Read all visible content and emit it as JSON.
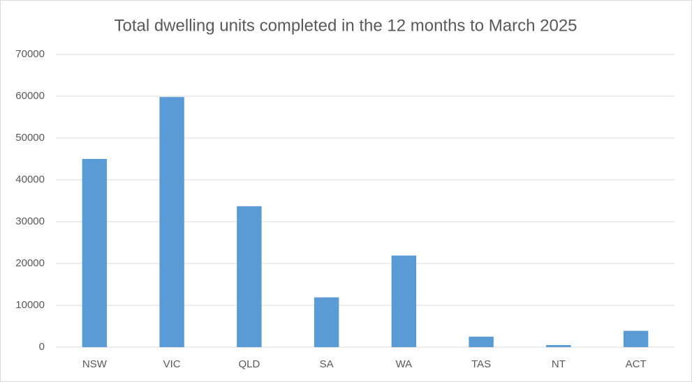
{
  "chart_data": {
    "type": "bar",
    "title": "Total dwelling units completed in the 12 months to March 2025",
    "categories": [
      "NSW",
      "VIC",
      "QLD",
      "SA",
      "WA",
      "TAS",
      "NT",
      "ACT"
    ],
    "values": [
      45000,
      59800,
      33700,
      11900,
      21900,
      2500,
      500,
      3900
    ],
    "color": "#5b9bd5",
    "ylim": [
      0,
      70000
    ],
    "yticks": [
      0,
      10000,
      20000,
      30000,
      40000,
      50000,
      60000,
      70000
    ],
    "grid": true
  }
}
